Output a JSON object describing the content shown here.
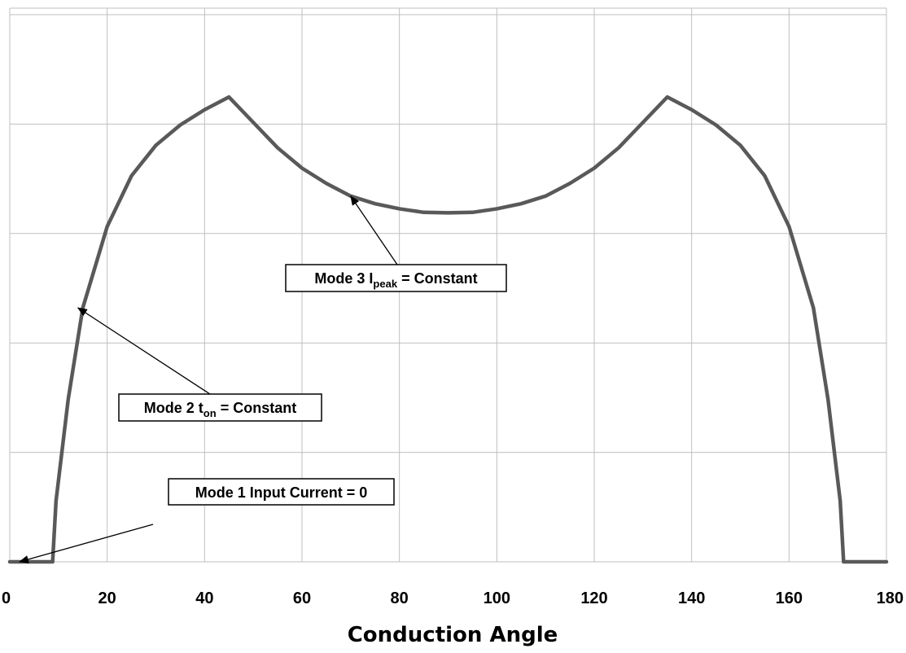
{
  "chart_data": {
    "type": "line",
    "title": "",
    "xlabel": "Conduction Angle",
    "ylabel": "",
    "xlim": [
      0,
      180
    ],
    "ylim": [
      0,
      1
    ],
    "xticks": [
      0,
      20,
      40,
      60,
      80,
      100,
      120,
      140,
      160,
      180
    ],
    "y_gridlines": 5,
    "grid": true,
    "series": [
      {
        "color": "#595959",
        "x": [
          0,
          8.8,
          9.5,
          12,
          15,
          20,
          25,
          30,
          35,
          40,
          45,
          50,
          55,
          60,
          65,
          70,
          75,
          80,
          85,
          90,
          95,
          100,
          105,
          110,
          115,
          120,
          125,
          130,
          135,
          140,
          145,
          150,
          155,
          160,
          165,
          168,
          170.5,
          171.2,
          180
        ],
        "y": [
          0,
          0,
          0.12,
          0.32,
          0.5,
          0.66,
          0.76,
          0.82,
          0.86,
          0.89,
          0.915,
          0.865,
          0.815,
          0.775,
          0.745,
          0.72,
          0.705,
          0.695,
          0.688,
          0.687,
          0.688,
          0.695,
          0.705,
          0.72,
          0.745,
          0.775,
          0.815,
          0.865,
          0.915,
          0.89,
          0.86,
          0.82,
          0.76,
          0.66,
          0.5,
          0.32,
          0.12,
          0,
          0
        ]
      }
    ],
    "annotations": [
      {
        "main": "Mode 1 Input Current = 0",
        "sub": "",
        "rest": "",
        "target": [
          2,
          0
        ]
      },
      {
        "main": "Mode 2 t",
        "sub": "on",
        "rest": " = Constant",
        "target": [
          14,
          0.5
        ]
      },
      {
        "main": "Mode 3 I",
        "sub": "peak",
        "rest": " = Constant",
        "target": [
          70,
          0.72
        ]
      }
    ]
  },
  "colors": {
    "grid": "#bfbfbf",
    "line": "#595959",
    "arrow": "#000000",
    "box_border": "#000000",
    "box_fill": "#ffffff"
  }
}
